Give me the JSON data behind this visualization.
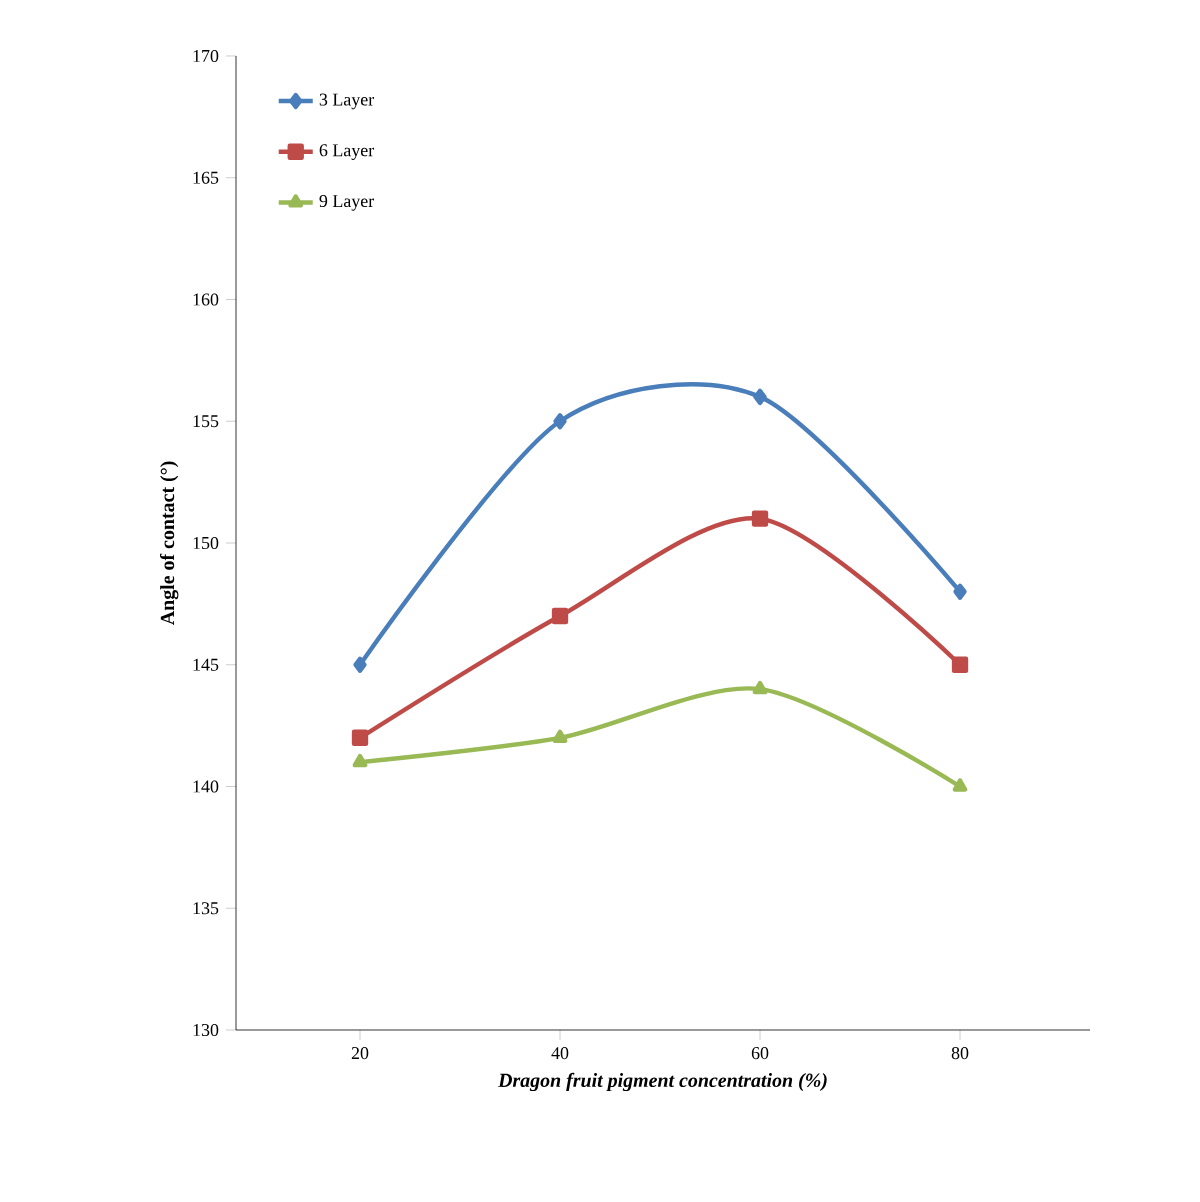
{
  "chart_data": {
    "type": "line",
    "xlabel": "Dragon fruit pigment concentration (%)",
    "ylabel": "Angle of contact (°)",
    "categories": [
      "20",
      "40",
      "60",
      "80"
    ],
    "series": [
      {
        "name": "3 Layer",
        "color": "#4a7ebb",
        "marker": "diamond",
        "values": [
          145,
          155,
          156,
          148
        ]
      },
      {
        "name": "6 Layer",
        "color": "#be4b48",
        "marker": "square",
        "values": [
          142,
          147,
          151,
          145
        ]
      },
      {
        "name": "9 Layer",
        "color": "#98b954",
        "marker": "triangle",
        "values": [
          141,
          142,
          144,
          140
        ]
      }
    ],
    "ylim": [
      130,
      170
    ],
    "yticks": [
      130,
      135,
      140,
      145,
      150,
      155,
      160,
      165,
      170
    ],
    "legend": "top left",
    "grid": false,
    "line_style": "solid"
  }
}
